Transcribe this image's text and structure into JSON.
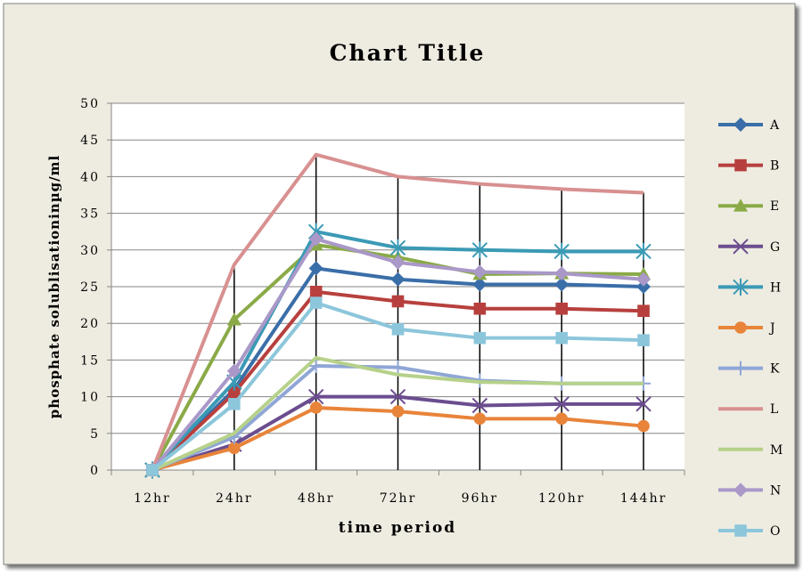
{
  "chart_data": {
    "type": "line",
    "title": "Chart Title",
    "xlabel": "time period",
    "ylabel": "phosphate solublisationinµg/ml",
    "ylim": [
      0,
      50
    ],
    "yticks": [
      0,
      5,
      10,
      15,
      20,
      25,
      30,
      35,
      40,
      45,
      50
    ],
    "categories": [
      "12hr",
      "24hr",
      "48hr",
      "72hr",
      "96hr",
      "120hr",
      "144hr"
    ],
    "grid": true,
    "legend_position": "right",
    "drop_lines": true,
    "series": [
      {
        "name": "A",
        "color": "#3A6EA8",
        "marker": "diamond",
        "values": [
          0,
          11,
          27.5,
          26,
          25.3,
          25.3,
          25
        ]
      },
      {
        "name": "B",
        "color": "#B7403E",
        "marker": "square",
        "values": [
          0,
          10.5,
          24.3,
          23,
          22,
          22,
          21.7
        ]
      },
      {
        "name": "E",
        "color": "#8AAA47",
        "marker": "triangle",
        "values": [
          0,
          20.5,
          30.7,
          29,
          26.7,
          26.8,
          26.7
        ]
      },
      {
        "name": "G",
        "color": "#6B4D8F",
        "marker": "x",
        "values": [
          0,
          3.5,
          10,
          10,
          8.8,
          9,
          9
        ]
      },
      {
        "name": "H",
        "color": "#3B9AB5",
        "marker": "asterisk",
        "values": [
          0,
          12,
          32.5,
          30.3,
          30,
          29.8,
          29.8
        ]
      },
      {
        "name": "J",
        "color": "#E8843A",
        "marker": "circle",
        "values": [
          0,
          3,
          8.5,
          8,
          7,
          7,
          6
        ]
      },
      {
        "name": "K",
        "color": "#8FA6D6",
        "marker": "plus",
        "values": [
          0,
          4.5,
          14.2,
          14,
          12.2,
          11.8,
          11.8
        ]
      },
      {
        "name": "L",
        "color": "#D89090",
        "marker": "none",
        "values": [
          0,
          28,
          43,
          40,
          39,
          38.3,
          37.8
        ]
      },
      {
        "name": "M",
        "color": "#B6D18A",
        "marker": "none",
        "values": [
          0,
          5,
          15.3,
          13,
          12,
          11.8,
          11.8
        ]
      },
      {
        "name": "N",
        "color": "#A998C8",
        "marker": "diamond",
        "values": [
          0,
          13.5,
          31.5,
          28.3,
          27,
          26.8,
          26
        ]
      },
      {
        "name": "O",
        "color": "#8CC6DB",
        "marker": "square",
        "values": [
          0,
          9,
          22.8,
          19.2,
          18,
          18,
          17.7
        ]
      }
    ]
  }
}
